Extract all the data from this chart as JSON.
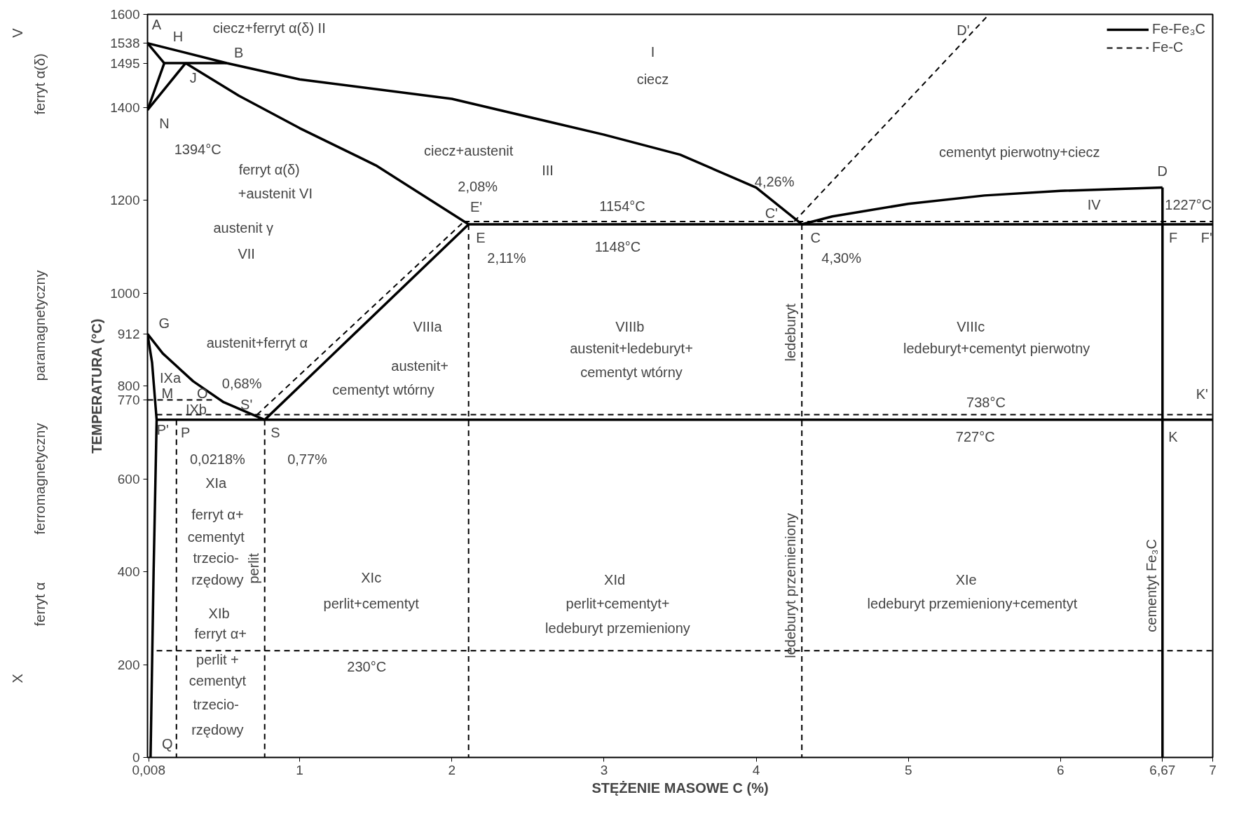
{
  "chart_data": {
    "type": "line",
    "xlabel": "STĘŻENIE MASOWE C (%)",
    "ylabel": "TEMPERATURA (°C)",
    "xlim": [
      0,
      7
    ],
    "ylim": [
      0,
      1600
    ],
    "xticks": [
      {
        "value": 0.008,
        "label": "0,008"
      },
      1,
      2,
      3,
      4,
      5,
      6,
      {
        "value": 6.67,
        "label": "6,67"
      },
      7
    ],
    "yticks": [
      0,
      200,
      400,
      600,
      770,
      800,
      912,
      1000,
      1200,
      1400,
      1495,
      1538,
      1600
    ],
    "grid": false,
    "legend": "top right",
    "marker": "none",
    "series": [
      {
        "name": "Fe-Fe₃C",
        "color": "#000000",
        "line_style": "solid",
        "x": [
          0,
          0.52,
          1,
          2,
          3,
          3.5,
          4,
          4.3
        ],
        "values": [
          1538,
          1495,
          1460,
          1418,
          1341,
          1298,
          1227,
          1148
        ]
      },
      {
        "color": "#000000",
        "line_style": "solid",
        "x": [
          4.3,
          4.5,
          5,
          5.5,
          6,
          6.67
        ],
        "values": [
          1148,
          1165,
          1192,
          1210,
          1220,
          1227
        ]
      },
      {
        "color": "#000000",
        "line_style": "solid",
        "x": [
          0,
          0.11
        ],
        "values": [
          1538,
          1495
        ]
      },
      {
        "color": "#000000",
        "line_style": "solid",
        "x": [
          0.11,
          0.52
        ],
        "values": [
          1495,
          1495
        ]
      },
      {
        "color": "#000000",
        "line_style": "solid",
        "x": [
          0,
          0.11
        ],
        "values": [
          1394,
          1495
        ]
      },
      {
        "color": "#000000",
        "line_style": "solid",
        "x": [
          0,
          0.25
        ],
        "values": [
          1394,
          1495
        ]
      },
      {
        "color": "#000000",
        "line_style": "solid",
        "x": [
          0.25,
          0.6,
          1,
          1.5,
          2.11
        ],
        "values": [
          1495,
          1425,
          1355,
          1275,
          1148
        ]
      },
      {
        "color": "#000000",
        "line_style": "solid",
        "x": [
          2.11,
          7
        ],
        "values": [
          1148,
          1148
        ]
      },
      {
        "color": "#000000",
        "line_style": "solid",
        "x": [
          0,
          0.1,
          0.3,
          0.5,
          0.77
        ],
        "values": [
          912,
          870,
          810,
          765,
          727
        ]
      },
      {
        "color": "#000000",
        "line_style": "solid",
        "x": [
          0,
          0.03,
          0.06,
          0.04,
          0.02
        ],
        "values": [
          912,
          850,
          727,
          400,
          0
        ]
      },
      {
        "color": "#000000",
        "line_style": "solid",
        "x": [
          0.06,
          7
        ],
        "values": [
          727,
          727
        ]
      },
      {
        "color": "#000000",
        "line_style": "solid",
        "x": [
          6.67,
          6.67
        ],
        "values": [
          1227,
          0
        ]
      },
      {
        "color": "#000000",
        "line_style": "solid",
        "x": [
          0.77,
          2.11
        ],
        "values": [
          727,
          1148
        ]
      },
      {
        "name": "Fe-C",
        "color": "#000000",
        "line_style": "dashed",
        "x": [
          4.25,
          5.53
        ],
        "values": [
          1154,
          1600
        ]
      },
      {
        "color": "#000000",
        "line_style": "dashed",
        "x": [
          2.08,
          7
        ],
        "values": [
          1154,
          1154
        ]
      },
      {
        "color": "#000000",
        "line_style": "dashed",
        "x": [
          0.72,
          2.08
        ],
        "values": [
          738,
          1154
        ]
      },
      {
        "color": "#000000",
        "line_style": "dashed",
        "x": [
          0.06,
          7
        ],
        "values": [
          738,
          738
        ]
      },
      {
        "color": "#000000",
        "line_style": "dashed",
        "x": [
          0.19,
          0.19
        ],
        "values": [
          727,
          0
        ]
      },
      {
        "color": "#000000",
        "line_style": "dashed",
        "x": [
          0.77,
          0.77
        ],
        "values": [
          727,
          0
        ]
      },
      {
        "color": "#000000",
        "line_style": "dashed",
        "x": [
          2.11,
          2.11
        ],
        "values": [
          1148,
          0
        ]
      },
      {
        "color": "#000000",
        "line_style": "dashed",
        "x": [
          4.3,
          4.3
        ],
        "values": [
          1148,
          0
        ]
      },
      {
        "color": "#000000",
        "line_style": "dashed",
        "x": [
          0.06,
          7
        ],
        "values": [
          230,
          230
        ]
      },
      {
        "color": "#000000",
        "line_style": "dashed",
        "x": [
          0,
          0.45
        ],
        "values": [
          770,
          770
        ]
      }
    ],
    "annotations": [
      "V",
      "ferryt α(δ)",
      "paramagnetyczny",
      "ferromagnetyczny",
      "ferryt α",
      "X",
      "A",
      "ciecz+ferryt α(δ) II",
      "H",
      "B",
      "J",
      "N",
      "1394°C",
      "I",
      "ciecz",
      "D'",
      "ciecz+austenit",
      "III",
      "2,08%",
      "ferryt α(δ)",
      "+austenit VI",
      "4,26%",
      "cementyt pierwotny+ciecz",
      "D",
      "E'",
      "1154°C",
      "C'",
      "IV",
      "1227°C",
      "austenit γ",
      "VII",
      "E",
      "2,11%",
      "1148°C",
      "C",
      "4,30%",
      "F",
      "F'",
      "ledeburyt",
      "G",
      "austenit+ferryt α",
      "IXa",
      "M",
      "O",
      "0,68%",
      "S'",
      "IXb",
      "P'",
      "P",
      "S",
      "0,0218%",
      "0,77%",
      "VIIIa",
      "austenit+",
      "cementyt wtórny",
      "VIIIb",
      "austenit+ledeburyt+",
      "cementyt wtórny",
      "VIIIc",
      "ledeburyt+cementyt pierwotny",
      "738°C",
      "K'",
      "727°C",
      "K",
      "XIa",
      "ferryt α+",
      "cementyt",
      "trzecio-",
      "rzędowy",
      "perlit",
      "XIb",
      "ferryt α+",
      "perlit +",
      "cementyt",
      "trzecio-",
      "rzędowy",
      "XIc",
      "perlit+cementyt",
      "230°C",
      "XId",
      "perlit+cementyt+",
      "ledeburyt przemieniony",
      "ledeburyt przemieniony",
      "XIe",
      "ledeburyt przemieniony+cementyt",
      "cementyt Fe₃C",
      "Q"
    ]
  }
}
